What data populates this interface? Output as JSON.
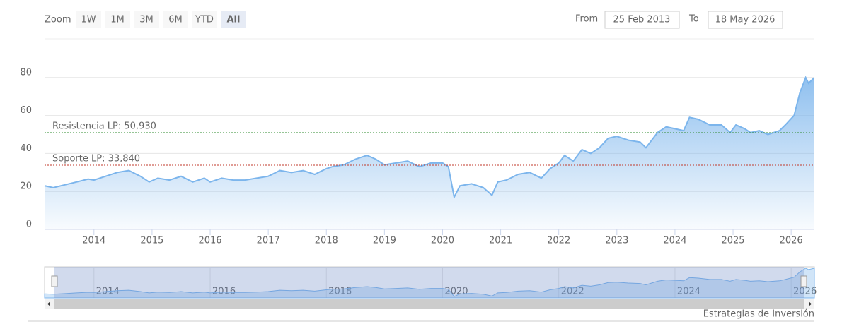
{
  "chart_data": {
    "type": "area",
    "x": [
      2013.15,
      2013.3,
      2013.5,
      2013.7,
      2013.9,
      2014.0,
      2014.2,
      2014.4,
      2014.6,
      2014.8,
      2014.95,
      2015.1,
      2015.3,
      2015.5,
      2015.7,
      2015.9,
      2016.0,
      2016.2,
      2016.4,
      2016.6,
      2016.8,
      2017.0,
      2017.2,
      2017.4,
      2017.6,
      2017.8,
      2018.0,
      2018.1,
      2018.3,
      2018.5,
      2018.7,
      2018.85,
      2019.0,
      2019.2,
      2019.4,
      2019.6,
      2019.8,
      2020.0,
      2020.1,
      2020.2,
      2020.3,
      2020.5,
      2020.7,
      2020.85,
      2020.95,
      2021.1,
      2021.3,
      2021.5,
      2021.7,
      2021.85,
      2022.0,
      2022.1,
      2022.25,
      2022.4,
      2022.55,
      2022.7,
      2022.85,
      2023.0,
      2023.2,
      2023.4,
      2023.5,
      2023.7,
      2023.85,
      2024.0,
      2024.15,
      2024.25,
      2024.4,
      2024.6,
      2024.8,
      2024.95,
      2025.05,
      2025.2,
      2025.3,
      2025.45,
      2025.6,
      2025.8,
      2025.9,
      2026.05,
      2026.15,
      2026.25,
      2026.3,
      2026.4
    ],
    "values": [
      23,
      22,
      23.5,
      25,
      26.5,
      26,
      28,
      30,
      31,
      28,
      25,
      27,
      26,
      28,
      25,
      27,
      25,
      27,
      26,
      26,
      27,
      28,
      31,
      30,
      31,
      29,
      32,
      33,
      34,
      37,
      39,
      37,
      34,
      35,
      36,
      33,
      35,
      35,
      33,
      17,
      23,
      24,
      22,
      18,
      25,
      26,
      29,
      30,
      27,
      32,
      35,
      39,
      36,
      42,
      40,
      43,
      48,
      49,
      47,
      46,
      43,
      51,
      54,
      53,
      52,
      59,
      58,
      55,
      55,
      51,
      55,
      53,
      51,
      52,
      50,
      52,
      55,
      60,
      72,
      80,
      77,
      80
    ],
    "color": "#7cb5ec",
    "xlim": [
      2013.15,
      2026.4
    ],
    "xticks": [
      2014,
      2015,
      2016,
      2017,
      2018,
      2019,
      2020,
      2021,
      2022,
      2023,
      2024,
      2025,
      2026
    ],
    "ylim": [
      0,
      100
    ],
    "yticks": [
      0,
      20,
      40,
      60,
      80
    ],
    "grid": true,
    "plot_lines": [
      {
        "label": "Resistencia LP: 50,930",
        "value": 50.93,
        "color": "#2e8b2e"
      },
      {
        "label": "Soporte LP: 33,840",
        "value": 33.84,
        "color": "#c0392b"
      }
    ],
    "navigator": {
      "xticks": [
        2014,
        2016,
        2018,
        2020,
        2022,
        2024,
        2026
      ]
    },
    "range_selector": {
      "zoom_label": "Zoom",
      "buttons": [
        "1W",
        "1M",
        "3M",
        "6M",
        "YTD",
        "All"
      ],
      "selected": 5,
      "from_label": "From",
      "from": "25 Feb 2013",
      "to_label": "To",
      "to": "18 May 2026"
    },
    "credits": "Estrategias de Inversión"
  }
}
